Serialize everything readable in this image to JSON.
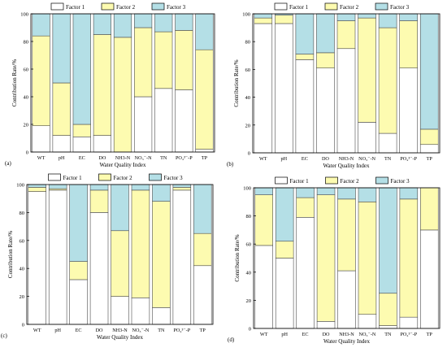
{
  "legend": {
    "labels": [
      "Factor 1",
      "Factor 2",
      "Factor 3"
    ]
  },
  "colors": {
    "factor1": "#ffffff",
    "factor2": "#fdfbb0",
    "factor3": "#b4dfe6",
    "stroke": "#4d4d4d"
  },
  "chart_data": [
    {
      "type": "bar",
      "stacked": true,
      "panel_label": "(a)",
      "xlabel": "Water Quality Index",
      "ylabel": "Contribution Rate/%",
      "ylim": [
        0,
        100
      ],
      "yticks": [
        "0",
        "20",
        "40",
        "60",
        "80",
        "100"
      ],
      "categories": [
        "WT",
        "pH",
        "EC",
        "DO",
        "NH3-N",
        "NO₃⁻-N",
        "TN",
        "PO₄³⁻-P",
        "TP"
      ],
      "legend_position": "top-center",
      "series": [
        {
          "name": "Factor 1",
          "values": [
            19,
            12,
            11,
            12,
            0,
            40,
            46,
            45,
            2
          ]
        },
        {
          "name": "Factor 2",
          "values": [
            65,
            38,
            9,
            73,
            83,
            50,
            41,
            43,
            72
          ]
        },
        {
          "name": "Factor 3",
          "values": [
            16,
            50,
            80,
            15,
            17,
            10,
            13,
            12,
            26
          ]
        }
      ]
    },
    {
      "type": "bar",
      "stacked": true,
      "panel_label": "(b)",
      "xlabel": "Water Quality Index",
      "ylabel": "Contribution Rate/%",
      "ylim": [
        0,
        100
      ],
      "yticks": [
        "0",
        "20",
        "40",
        "60",
        "80",
        "100"
      ],
      "categories": [
        "WT",
        "pH",
        "EC",
        "DO",
        "NH3-N",
        "NO₃⁻-N",
        "TN",
        "PO₄³⁻-P",
        "TP"
      ],
      "legend_position": "top-center",
      "series": [
        {
          "name": "Factor 1",
          "values": [
            93,
            93,
            67,
            61,
            75,
            22,
            14,
            61,
            6
          ]
        },
        {
          "name": "Factor 2",
          "values": [
            4,
            6,
            4,
            11,
            20,
            75,
            76,
            34,
            11
          ]
        },
        {
          "name": "Factor 3",
          "values": [
            3,
            1,
            29,
            28,
            5,
            3,
            10,
            5,
            83
          ]
        }
      ]
    },
    {
      "type": "bar",
      "stacked": true,
      "panel_label": "(c)",
      "xlabel": "Water Quality Index",
      "ylabel": "Contribution Rate/%",
      "ylim": [
        0,
        100
      ],
      "yticks": [
        "0",
        "20",
        "40",
        "60",
        "80",
        "100"
      ],
      "categories": [
        "WT",
        "pH",
        "EC",
        "DO",
        "NH3-N",
        "NO₃⁻-N",
        "TN",
        "PO₄³⁻-P",
        "TP"
      ],
      "legend_position": "top-center",
      "series": [
        {
          "name": "Factor 1",
          "values": [
            95,
            96,
            32,
            80,
            20,
            19,
            12,
            96,
            42
          ]
        },
        {
          "name": "Factor 2",
          "values": [
            3,
            1,
            13,
            16,
            47,
            77,
            76,
            2,
            23
          ]
        },
        {
          "name": "Factor 3",
          "values": [
            2,
            3,
            55,
            4,
            33,
            4,
            12,
            2,
            35
          ]
        }
      ]
    },
    {
      "type": "bar",
      "stacked": true,
      "panel_label": "(d)",
      "xlabel": "Water Quality Index",
      "ylabel": "Contribution Rate/%",
      "ylim": [
        0,
        100
      ],
      "yticks": [
        "0",
        "20",
        "40",
        "60",
        "80",
        "100"
      ],
      "categories": [
        "WT",
        "pH",
        "EC",
        "DO",
        "NH3-N",
        "NO₃⁻-N",
        "TN",
        "PO₄³⁻-P",
        "TP"
      ],
      "legend_position": "top-center",
      "series": [
        {
          "name": "Factor 1",
          "values": [
            59,
            50,
            79,
            5,
            41,
            10,
            2,
            8,
            70
          ]
        },
        {
          "name": "Factor 2",
          "values": [
            36,
            12,
            14,
            90,
            51,
            80,
            23,
            84,
            30
          ]
        },
        {
          "name": "Factor 3",
          "values": [
            5,
            38,
            7,
            5,
            8,
            10,
            75,
            8,
            0
          ]
        }
      ]
    }
  ]
}
